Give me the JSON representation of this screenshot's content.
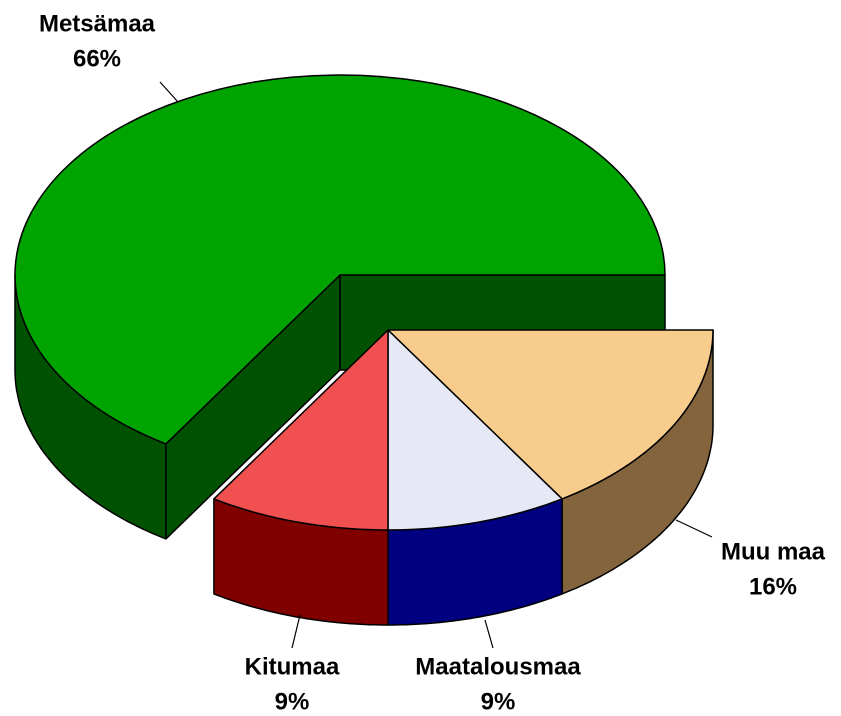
{
  "chart_data": {
    "type": "pie",
    "categories": [
      "Muu maa",
      "Maatalousmaa",
      "Kitumaa",
      "Metsämaa"
    ],
    "values": [
      16,
      9,
      9,
      66
    ],
    "value_labels": [
      "16%",
      "9%",
      "9%",
      "66%"
    ],
    "colors": [
      "#f8cc8c",
      "#e6e8f6",
      "#f05050",
      "#00a400"
    ],
    "side_colors": [
      "#84643c",
      "#000080",
      "#800000",
      "#005200"
    ]
  }
}
